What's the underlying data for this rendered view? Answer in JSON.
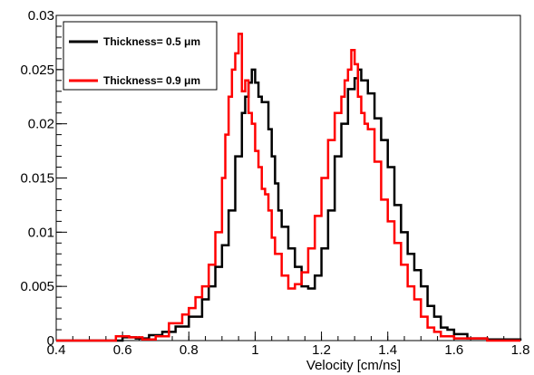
{
  "chart_data": {
    "type": "line",
    "title": "",
    "xlabel": "Velocity [cm/ns]",
    "ylabel": "",
    "xlim": [
      0.4,
      1.8
    ],
    "ylim": [
      0,
      0.03
    ],
    "xticks": [
      "0.4",
      "0.6",
      "0.8",
      "1",
      "1.2",
      "1.4",
      "1.6",
      "1.8"
    ],
    "yticks": [
      "0",
      "0.005",
      "0.01",
      "0.015",
      "0.02",
      "0.025",
      "0.03"
    ],
    "grid": false,
    "legend_position": "top-left",
    "series": [
      {
        "name": "Thickness= 0.5 μm",
        "color": "#000000",
        "points": [
          [
            0.4,
            0.0
          ],
          [
            0.56,
            0.0
          ],
          [
            0.6,
            0.0003
          ],
          [
            0.64,
            0.0002
          ],
          [
            0.68,
            0.0005
          ],
          [
            0.72,
            0.0008
          ],
          [
            0.76,
            0.0013
          ],
          [
            0.8,
            0.0022
          ],
          [
            0.84,
            0.0038
          ],
          [
            0.86,
            0.005
          ],
          [
            0.88,
            0.0068
          ],
          [
            0.9,
            0.0088
          ],
          [
            0.92,
            0.012
          ],
          [
            0.94,
            0.017
          ],
          [
            0.96,
            0.021
          ],
          [
            0.97,
            0.0225
          ],
          [
            0.98,
            0.0238
          ],
          [
            0.99,
            0.025
          ],
          [
            1.0,
            0.0238
          ],
          [
            1.01,
            0.0225
          ],
          [
            1.02,
            0.022
          ],
          [
            1.04,
            0.0195
          ],
          [
            1.05,
            0.017
          ],
          [
            1.06,
            0.0145
          ],
          [
            1.07,
            0.012
          ],
          [
            1.08,
            0.0105
          ],
          [
            1.1,
            0.0085
          ],
          [
            1.12,
            0.0068
          ],
          [
            1.14,
            0.005
          ],
          [
            1.16,
            0.0048
          ],
          [
            1.18,
            0.006
          ],
          [
            1.2,
            0.0085
          ],
          [
            1.22,
            0.012
          ],
          [
            1.24,
            0.017
          ],
          [
            1.26,
            0.02
          ],
          [
            1.28,
            0.0232
          ],
          [
            1.3,
            0.0242
          ],
          [
            1.31,
            0.025
          ],
          [
            1.32,
            0.024
          ],
          [
            1.34,
            0.0228
          ],
          [
            1.36,
            0.0205
          ],
          [
            1.38,
            0.0185
          ],
          [
            1.4,
            0.016
          ],
          [
            1.42,
            0.0125
          ],
          [
            1.44,
            0.01
          ],
          [
            1.46,
            0.008
          ],
          [
            1.48,
            0.0065
          ],
          [
            1.5,
            0.005
          ],
          [
            1.52,
            0.0032
          ],
          [
            1.54,
            0.0022
          ],
          [
            1.56,
            0.0012
          ],
          [
            1.58,
            0.001
          ],
          [
            1.6,
            0.0006
          ],
          [
            1.64,
            0.0002
          ],
          [
            1.7,
            0.0001
          ],
          [
            1.8,
            0.0
          ]
        ]
      },
      {
        "name": "Thickness= 0.9 μm",
        "color": "#ff0000",
        "points": [
          [
            0.4,
            0.0
          ],
          [
            0.54,
            0.0
          ],
          [
            0.58,
            0.0004
          ],
          [
            0.62,
            0.0003
          ],
          [
            0.66,
            0.0001
          ],
          [
            0.7,
            0.0004
          ],
          [
            0.74,
            0.0016
          ],
          [
            0.78,
            0.0024
          ],
          [
            0.8,
            0.003
          ],
          [
            0.82,
            0.004
          ],
          [
            0.84,
            0.005
          ],
          [
            0.86,
            0.007
          ],
          [
            0.88,
            0.01
          ],
          [
            0.9,
            0.015
          ],
          [
            0.91,
            0.019
          ],
          [
            0.92,
            0.0225
          ],
          [
            0.93,
            0.025
          ],
          [
            0.94,
            0.0265
          ],
          [
            0.95,
            0.0283
          ],
          [
            0.96,
            0.023
          ],
          [
            0.97,
            0.024
          ],
          [
            0.98,
            0.021
          ],
          [
            0.99,
            0.02
          ],
          [
            1.0,
            0.0175
          ],
          [
            1.01,
            0.016
          ],
          [
            1.02,
            0.014
          ],
          [
            1.03,
            0.0135
          ],
          [
            1.04,
            0.012
          ],
          [
            1.05,
            0.0095
          ],
          [
            1.06,
            0.008
          ],
          [
            1.08,
            0.006
          ],
          [
            1.1,
            0.0048
          ],
          [
            1.12,
            0.0052
          ],
          [
            1.14,
            0.0063
          ],
          [
            1.16,
            0.0085
          ],
          [
            1.18,
            0.0115
          ],
          [
            1.2,
            0.015
          ],
          [
            1.22,
            0.0185
          ],
          [
            1.24,
            0.021
          ],
          [
            1.26,
            0.0225
          ],
          [
            1.27,
            0.024
          ],
          [
            1.28,
            0.025
          ],
          [
            1.29,
            0.0268
          ],
          [
            1.3,
            0.0255
          ],
          [
            1.31,
            0.0225
          ],
          [
            1.32,
            0.021
          ],
          [
            1.33,
            0.02
          ],
          [
            1.34,
            0.0195
          ],
          [
            1.36,
            0.0165
          ],
          [
            1.38,
            0.013
          ],
          [
            1.4,
            0.011
          ],
          [
            1.42,
            0.009
          ],
          [
            1.44,
            0.007
          ],
          [
            1.46,
            0.005
          ],
          [
            1.48,
            0.0038
          ],
          [
            1.5,
            0.0022
          ],
          [
            1.52,
            0.0012
          ],
          [
            1.54,
            0.0008
          ],
          [
            1.56,
            0.0004
          ],
          [
            1.6,
            0.0002
          ],
          [
            1.7,
            0.0
          ],
          [
            1.8,
            0.0
          ]
        ]
      }
    ]
  }
}
